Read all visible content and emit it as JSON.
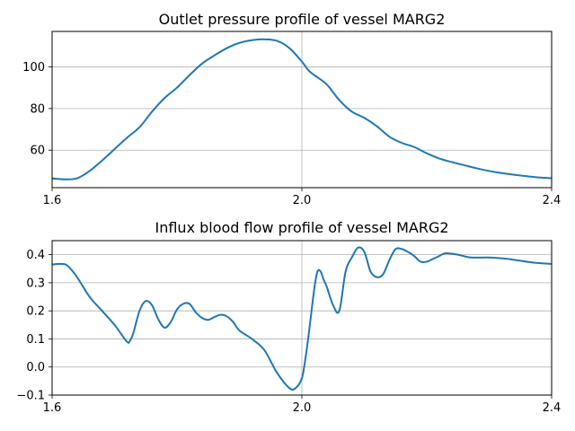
{
  "chart_data": [
    {
      "type": "line",
      "title": "Outlet pressure profile of vessel MARG2",
      "xlabel": "",
      "ylabel": "",
      "xlim": [
        1.6,
        2.4
      ],
      "ylim": [
        42,
        117
      ],
      "x_ticks": [
        1.6,
        2.0,
        2.4
      ],
      "x_tick_labels": [
        "1.6",
        "2.0",
        "2.4"
      ],
      "y_ticks": [
        60,
        80,
        100
      ],
      "y_tick_labels": [
        "60",
        "80",
        "100"
      ],
      "grid": true,
      "line_color": "#1f77b4",
      "series": [
        {
          "x": [
            1.6,
            1.62,
            1.64,
            1.66,
            1.68,
            1.7,
            1.72,
            1.74,
            1.76,
            1.78,
            1.8,
            1.82,
            1.84,
            1.86,
            1.88,
            1.9,
            1.92,
            1.94,
            1.96,
            1.98,
            2.0,
            2.01,
            2.02,
            2.04,
            2.06,
            2.08,
            2.1,
            2.12,
            2.14,
            2.16,
            2.18,
            2.2,
            2.22,
            2.24,
            2.26,
            2.28,
            2.3,
            2.32,
            2.34,
            2.36,
            2.38,
            2.4
          ],
          "y": [
            46.5,
            46.0,
            46.5,
            50.0,
            55.0,
            60.5,
            66.0,
            71.0,
            78.5,
            85.0,
            90.0,
            96.0,
            101.5,
            105.5,
            109.0,
            111.5,
            112.8,
            113.2,
            112.5,
            109.0,
            102.5,
            98.5,
            96.0,
            91.5,
            84.0,
            78.5,
            75.5,
            71.5,
            66.5,
            63.5,
            61.5,
            58.5,
            56.0,
            54.3,
            52.8,
            51.3,
            50.0,
            49.0,
            48.2,
            47.5,
            46.9,
            46.5
          ]
        }
      ]
    },
    {
      "type": "line",
      "title": "Influx blood flow profile of vessel MARG2",
      "xlabel": "",
      "ylabel": "",
      "xlim": [
        1.6,
        2.4
      ],
      "ylim": [
        -0.1,
        0.45
      ],
      "x_ticks": [
        1.6,
        2.0,
        2.4
      ],
      "x_tick_labels": [
        "1.6",
        "2.0",
        "2.4"
      ],
      "y_ticks": [
        -0.1,
        0.0,
        0.1,
        0.2,
        0.3,
        0.4
      ],
      "y_tick_labels": [
        "−0.1",
        "0.0",
        "0.1",
        "0.2",
        "0.3",
        "0.4"
      ],
      "grid": true,
      "line_color": "#1f77b4",
      "series": [
        {
          "x": [
            1.6,
            1.615,
            1.625,
            1.64,
            1.66,
            1.68,
            1.7,
            1.72,
            1.725,
            1.73,
            1.74,
            1.75,
            1.76,
            1.77,
            1.78,
            1.79,
            1.8,
            1.81,
            1.82,
            1.83,
            1.84,
            1.85,
            1.86,
            1.87,
            1.88,
            1.89,
            1.9,
            1.92,
            1.94,
            1.96,
            1.98,
            1.99,
            2.0,
            2.005,
            2.01,
            2.02,
            2.025,
            2.03,
            2.035,
            2.04,
            2.05,
            2.06,
            2.07,
            2.08,
            2.09,
            2.1,
            2.11,
            2.12,
            2.13,
            2.14,
            2.15,
            2.16,
            2.17,
            2.18,
            2.19,
            2.2,
            2.21,
            2.22,
            2.23,
            2.25,
            2.27,
            2.3,
            2.33,
            2.36,
            2.38,
            2.4
          ],
          "y": [
            0.365,
            0.367,
            0.36,
            0.32,
            0.25,
            0.2,
            0.15,
            0.09,
            0.095,
            0.12,
            0.2,
            0.235,
            0.22,
            0.17,
            0.14,
            0.16,
            0.205,
            0.225,
            0.225,
            0.195,
            0.175,
            0.168,
            0.178,
            0.186,
            0.18,
            0.16,
            0.13,
            0.1,
            0.06,
            -0.02,
            -0.075,
            -0.075,
            -0.04,
            0.02,
            0.1,
            0.28,
            0.34,
            0.34,
            0.31,
            0.285,
            0.22,
            0.2,
            0.34,
            0.39,
            0.425,
            0.41,
            0.34,
            0.32,
            0.33,
            0.38,
            0.42,
            0.42,
            0.41,
            0.395,
            0.375,
            0.375,
            0.385,
            0.395,
            0.405,
            0.4,
            0.39,
            0.39,
            0.385,
            0.375,
            0.37,
            0.367
          ]
        }
      ]
    }
  ]
}
